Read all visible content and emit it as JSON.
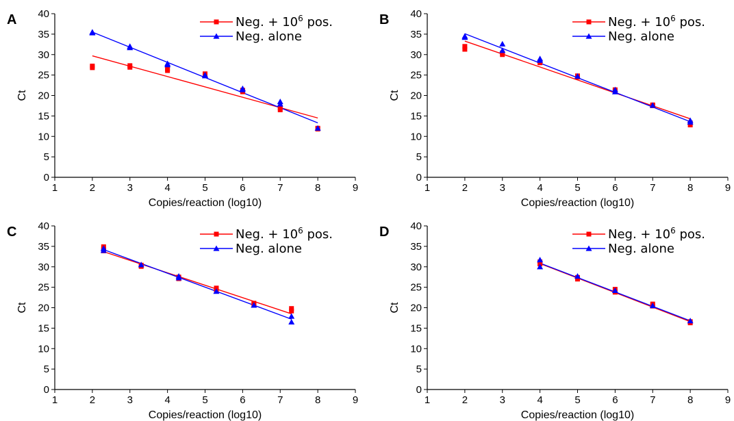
{
  "colors": {
    "neg_plus_pos": "#ff0000",
    "neg_alone": "#0000ff",
    "axis": "#000000"
  },
  "chart_data": [
    {
      "panel": "A",
      "type": "scatter",
      "xlabel": "Copies/reaction (log10)",
      "ylabel": "Ct",
      "xlim": [
        1,
        9
      ],
      "ylim": [
        0,
        40
      ],
      "xticks": [
        1,
        2,
        3,
        4,
        5,
        6,
        7,
        8,
        9
      ],
      "yticks": [
        0,
        5,
        10,
        15,
        20,
        25,
        30,
        35,
        40
      ],
      "grid": false,
      "legend": {
        "placement": "top-right",
        "entries": [
          {
            "text": "Neg. + 10",
            "sup": "6",
            "after": " pos.",
            "marker": "square",
            "color": "#ff0000"
          },
          {
            "text": "Neg. alone",
            "marker": "triangle",
            "color": "#0000ff"
          }
        ]
      },
      "series": [
        {
          "name": "Neg. + 10^6 pos.",
          "marker": "square",
          "color": "#ff0000",
          "points": [
            [
              2,
              27.2
            ],
            [
              2,
              26.8
            ],
            [
              3,
              27.3
            ],
            [
              3,
              26.9
            ],
            [
              4,
              26.5
            ],
            [
              4,
              26.1
            ],
            [
              5,
              25.3
            ],
            [
              5,
              24.9
            ],
            [
              6,
              21.3
            ],
            [
              6,
              20.9
            ],
            [
              7,
              17.0
            ],
            [
              7,
              16.5
            ],
            [
              8,
              12.0
            ],
            [
              8,
              11.8
            ]
          ],
          "trendline": {
            "x": [
              2,
              8
            ],
            "y": [
              29.7,
              14.5
            ]
          }
        },
        {
          "name": "Neg. alone",
          "marker": "triangle",
          "color": "#0000ff",
          "points": [
            [
              2,
              35.5
            ],
            [
              2,
              35.3
            ],
            [
              3,
              32.0
            ],
            [
              3,
              31.7
            ],
            [
              4,
              27.8
            ],
            [
              4,
              27.5
            ],
            [
              5,
              25.0
            ],
            [
              5,
              24.8
            ],
            [
              6,
              21.7
            ],
            [
              6,
              21.4
            ],
            [
              7,
              18.5
            ],
            [
              7,
              17.9
            ],
            [
              8,
              12.0
            ]
          ],
          "trendline": {
            "x": [
              2,
              8
            ],
            "y": [
              35.5,
              13.3
            ]
          }
        }
      ]
    },
    {
      "panel": "B",
      "type": "scatter",
      "xlabel": "Copies/reaction (log10)",
      "ylabel": "Ct",
      "xlim": [
        1,
        9
      ],
      "ylim": [
        0,
        40
      ],
      "xticks": [
        1,
        2,
        3,
        4,
        5,
        6,
        7,
        8,
        9
      ],
      "yticks": [
        0,
        5,
        10,
        15,
        20,
        25,
        30,
        35,
        40
      ],
      "grid": false,
      "legend": {
        "placement": "top-right",
        "entries": [
          {
            "text": "Neg. + 10",
            "sup": "6",
            "after": " pos.",
            "marker": "square",
            "color": "#ff0000"
          },
          {
            "text": "Neg. alone",
            "marker": "triangle",
            "color": "#0000ff"
          }
        ]
      },
      "series": [
        {
          "name": "Neg. + 10^6 pos.",
          "marker": "square",
          "color": "#ff0000",
          "points": [
            [
              2,
              32.0
            ],
            [
              2,
              31.3
            ],
            [
              3,
              30.4
            ],
            [
              3,
              30.0
            ],
            [
              4,
              28.2
            ],
            [
              4,
              28.0
            ],
            [
              5,
              24.8
            ],
            [
              5,
              24.5
            ],
            [
              6,
              21.4
            ],
            [
              6,
              21.0
            ],
            [
              7,
              17.7
            ],
            [
              7,
              17.5
            ],
            [
              8,
              13.3
            ],
            [
              8,
              12.8
            ]
          ],
          "trendline": {
            "x": [
              2,
              8
            ],
            "y": [
              33.3,
              14.3
            ]
          }
        },
        {
          "name": "Neg. alone",
          "marker": "triangle",
          "color": "#0000ff",
          "points": [
            [
              2,
              34.5
            ],
            [
              2,
              34.2
            ],
            [
              3,
              32.6
            ],
            [
              3,
              31.0
            ],
            [
              4,
              29.0
            ],
            [
              4,
              28.6
            ],
            [
              5,
              24.7
            ],
            [
              6,
              21.4
            ],
            [
              6,
              20.9
            ],
            [
              7,
              17.6
            ],
            [
              8,
              13.9
            ],
            [
              8,
              13.5
            ]
          ],
          "trendline": {
            "x": [
              2,
              8
            ],
            "y": [
              35.1,
              13.6
            ]
          }
        }
      ]
    },
    {
      "panel": "C",
      "type": "scatter",
      "xlabel": "Copies/reaction (log10)",
      "ylabel": "Ct",
      "xlim": [
        1,
        9
      ],
      "ylim": [
        0,
        40
      ],
      "xticks": [
        1,
        2,
        3,
        4,
        5,
        6,
        7,
        8,
        9
      ],
      "yticks": [
        0,
        5,
        10,
        15,
        20,
        25,
        30,
        35,
        40
      ],
      "grid": false,
      "legend": {
        "placement": "top-right",
        "entries": [
          {
            "text": "Neg. + 10",
            "sup": "6",
            "after": " pos.",
            "marker": "square",
            "color": "#ff0000"
          },
          {
            "text": "Neg. alone",
            "marker": "triangle",
            "color": "#0000ff"
          }
        ]
      },
      "series": [
        {
          "name": "Neg. + 10^6 pos.",
          "marker": "square",
          "color": "#ff0000",
          "points": [
            [
              2.3,
              34.9
            ],
            [
              2.3,
              34.3
            ],
            [
              2.3,
              33.9
            ],
            [
              3.3,
              30.4
            ],
            [
              3.3,
              30.1
            ],
            [
              4.3,
              27.5
            ],
            [
              4.3,
              27.1
            ],
            [
              5.3,
              24.8
            ],
            [
              5.3,
              24.4
            ],
            [
              6.3,
              21.1
            ],
            [
              6.3,
              20.8
            ],
            [
              7.3,
              19.8
            ],
            [
              7.3,
              19.2
            ]
          ],
          "trendline": {
            "x": [
              2.3,
              7.3
            ],
            "y": [
              33.7,
              18.5
            ]
          }
        },
        {
          "name": "Neg. alone",
          "marker": "triangle",
          "color": "#0000ff",
          "points": [
            [
              2.3,
              34.5
            ],
            [
              2.3,
              34.0
            ],
            [
              3.3,
              30.5
            ],
            [
              4.3,
              27.7
            ],
            [
              4.3,
              27.3
            ],
            [
              5.3,
              24.0
            ],
            [
              6.3,
              20.6
            ],
            [
              7.3,
              17.9
            ],
            [
              7.3,
              16.5
            ]
          ],
          "trendline": {
            "x": [
              2.3,
              7.3
            ],
            "y": [
              34.2,
              17.2
            ]
          }
        }
      ]
    },
    {
      "panel": "D",
      "type": "scatter",
      "xlabel": "Copies/reaction (log10)",
      "ylabel": "Ct",
      "xlim": [
        1,
        9
      ],
      "ylim": [
        0,
        40
      ],
      "xticks": [
        1,
        2,
        3,
        4,
        5,
        6,
        7,
        8,
        9
      ],
      "yticks": [
        0,
        5,
        10,
        15,
        20,
        25,
        30,
        35,
        40
      ],
      "grid": false,
      "legend": {
        "placement": "top-right",
        "entries": [
          {
            "text": "Neg. + 10",
            "sup": "6",
            "after": " pos.",
            "marker": "square",
            "color": "#ff0000"
          },
          {
            "text": "Neg. alone",
            "marker": "triangle",
            "color": "#0000ff"
          }
        ]
      },
      "series": [
        {
          "name": "Neg. + 10^6 pos.",
          "marker": "square",
          "color": "#ff0000",
          "points": [
            [
              4,
              31.2
            ],
            [
              4,
              30.7
            ],
            [
              5,
              27.4
            ],
            [
              5,
              27.0
            ],
            [
              6,
              24.5
            ],
            [
              6,
              23.8
            ],
            [
              7,
              20.9
            ],
            [
              7,
              20.4
            ],
            [
              8,
              16.6
            ],
            [
              8,
              16.3
            ]
          ],
          "trendline": {
            "x": [
              4,
              8
            ],
            "y": [
              30.8,
              16.6
            ]
          }
        },
        {
          "name": "Neg. alone",
          "marker": "triangle",
          "color": "#0000ff",
          "points": [
            [
              4,
              31.7
            ],
            [
              4,
              30.0
            ],
            [
              5,
              27.7
            ],
            [
              6,
              24.2
            ],
            [
              7,
              20.5
            ],
            [
              8,
              16.8
            ]
          ],
          "trendline": {
            "x": [
              4,
              8
            ],
            "y": [
              30.9,
              16.8
            ]
          }
        }
      ]
    }
  ]
}
